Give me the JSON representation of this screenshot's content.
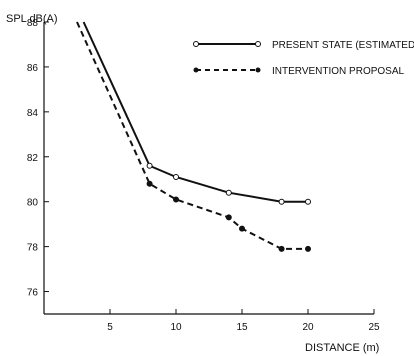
{
  "chart_data": {
    "type": "line",
    "title": "",
    "ylabel": "SPL dB(A)",
    "xlabel": "DISTANCE (m)",
    "xlim": [
      0,
      25
    ],
    "ylim": [
      75,
      88
    ],
    "x_ticks": [
      5,
      10,
      15,
      20,
      25
    ],
    "y_ticks": [
      76,
      78,
      80,
      82,
      84,
      86,
      88
    ],
    "grid": false,
    "legend_position": "top-right",
    "series": [
      {
        "name": "PRESENT STATE (ESTIMATED)",
        "line_style": "solid",
        "marker": "open-circle",
        "x": [
          3,
          8,
          10,
          14,
          18,
          20
        ],
        "y": [
          88,
          81.6,
          81.1,
          80.4,
          80.0,
          80.0
        ],
        "marked_points": [
          8,
          10,
          14,
          18,
          20
        ]
      },
      {
        "name": "INTERVENTION PROPOSAL",
        "line_style": "dashed",
        "marker": "filled-circle",
        "x": [
          2.5,
          8,
          10,
          14,
          15,
          18,
          20
        ],
        "y": [
          88,
          80.8,
          80.1,
          79.3,
          78.8,
          77.9,
          77.9
        ],
        "marked_points": [
          8,
          10,
          14,
          15,
          18,
          20
        ]
      }
    ]
  }
}
